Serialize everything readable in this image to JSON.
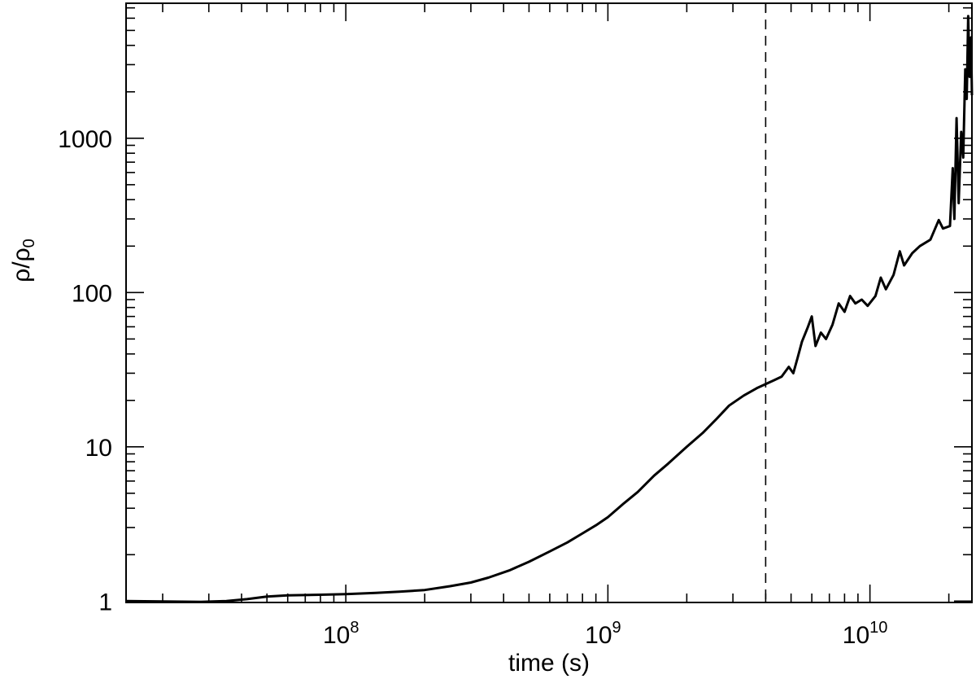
{
  "chart_data": {
    "type": "line",
    "title": "",
    "xlabel": "time (s)",
    "ylabel": {
      "main": "ρ/ρ",
      "subscript": "0"
    },
    "x_scale": "log",
    "y_scale": "log",
    "xlim": [
      14500000,
      24500000000
    ],
    "ylim": [
      0.98,
      7500
    ],
    "grid": false,
    "legend": "none",
    "x_tick_labels": [
      {
        "value": 100000000,
        "base": "10",
        "exp": "8"
      },
      {
        "value": 1000000000,
        "base": "10",
        "exp": "9"
      },
      {
        "value": 10000000000,
        "base": "10",
        "exp": "10"
      }
    ],
    "y_tick_labels": [
      {
        "value": 1,
        "label": "1"
      },
      {
        "value": 10,
        "label": "10"
      },
      {
        "value": 100,
        "label": "100"
      },
      {
        "value": 1000,
        "label": "1000"
      }
    ],
    "vertical_reference_line": {
      "x": 4000000000,
      "style": "dashed"
    },
    "series": [
      {
        "color": "#000000",
        "points": [
          [
            14500000,
            1.0
          ],
          [
            20000000,
            0.995
          ],
          [
            28000000,
            0.99
          ],
          [
            35000000,
            1.0
          ],
          [
            42000000,
            1.03
          ],
          [
            50000000,
            1.07
          ],
          [
            60000000,
            1.09
          ],
          [
            80000000,
            1.1
          ],
          [
            100000000,
            1.11
          ],
          [
            130000000,
            1.13
          ],
          [
            160000000,
            1.15
          ],
          [
            200000000,
            1.18
          ],
          [
            250000000,
            1.25
          ],
          [
            300000000,
            1.32
          ],
          [
            350000000,
            1.42
          ],
          [
            420000000,
            1.58
          ],
          [
            500000000,
            1.8
          ],
          [
            600000000,
            2.1
          ],
          [
            700000000,
            2.4
          ],
          [
            800000000,
            2.75
          ],
          [
            900000000,
            3.1
          ],
          [
            1000000000,
            3.5
          ],
          [
            1150000000,
            4.3
          ],
          [
            1300000000,
            5.1
          ],
          [
            1500000000,
            6.5
          ],
          [
            1700000000,
            7.8
          ],
          [
            2000000000,
            10.0
          ],
          [
            2300000000,
            12.3
          ],
          [
            2600000000,
            15.2
          ],
          [
            2900000000,
            18.5
          ],
          [
            3300000000,
            21.5
          ],
          [
            3700000000,
            24.0
          ],
          [
            4000000000,
            25.5
          ],
          [
            4300000000,
            27.0
          ],
          [
            4600000000,
            28.5
          ],
          [
            4900000000,
            33.0
          ],
          [
            5100000000,
            30.0
          ],
          [
            5300000000,
            38.0
          ],
          [
            5500000000,
            48.0
          ],
          [
            5800000000,
            60.0
          ],
          [
            6000000000,
            70.0
          ],
          [
            6200000000,
            45.0
          ],
          [
            6500000000,
            55.0
          ],
          [
            6800000000,
            50.0
          ],
          [
            7200000000,
            62.0
          ],
          [
            7600000000,
            85.0
          ],
          [
            8000000000,
            75.0
          ],
          [
            8400000000,
            95.0
          ],
          [
            8800000000,
            85.0
          ],
          [
            9300000000,
            90.0
          ],
          [
            9800000000,
            82.0
          ],
          [
            10500000000,
            95.0
          ],
          [
            11000000000,
            125.0
          ],
          [
            11500000000,
            105.0
          ],
          [
            12300000000,
            130.0
          ],
          [
            13000000000,
            185.0
          ],
          [
            13500000000,
            150.0
          ],
          [
            14500000000,
            180.0
          ],
          [
            15500000000,
            200.0
          ],
          [
            17000000000,
            220.0
          ],
          [
            18300000000,
            295.0
          ],
          [
            19000000000,
            260.0
          ],
          [
            20200000000,
            270.0
          ],
          [
            20700000000,
            640.0
          ],
          [
            21000000000,
            300.0
          ],
          [
            21400000000,
            1350.0
          ],
          [
            21800000000,
            380.0
          ],
          [
            22300000000,
            1100.0
          ],
          [
            22700000000,
            750.0
          ],
          [
            23100000000,
            2800.0
          ],
          [
            23400000000,
            1800.0
          ],
          [
            23700000000,
            6200.0
          ],
          [
            24000000000,
            2500.0
          ],
          [
            24300000000,
            4500.0
          ],
          [
            24500000000,
            1900.0
          ]
        ]
      }
    ]
  }
}
